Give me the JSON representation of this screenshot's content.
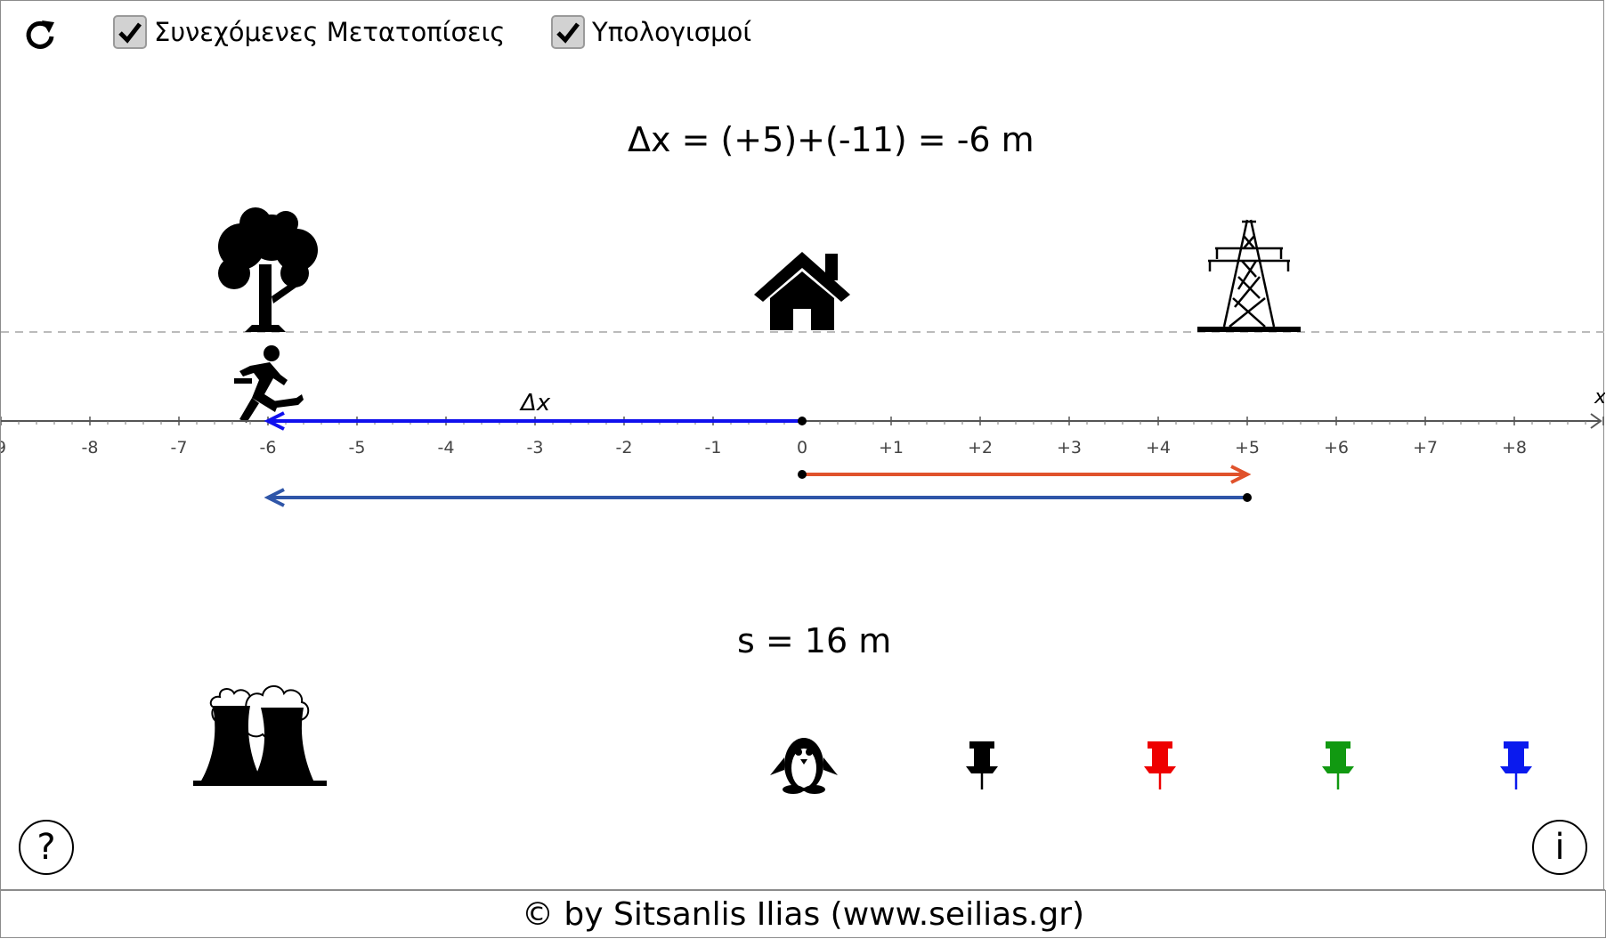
{
  "toolbar": {
    "reset_icon": "refresh-icon",
    "continuous_label": "Συνεχόμενες Μετατοπίσεις",
    "continuous_checked": true,
    "calculations_label": "Υπολογισμοί",
    "calculations_checked": true
  },
  "displacement_text": "Δx = (+5)+(-11) = -6 m",
  "distance_text": "s = 16 m",
  "axis": {
    "variable_label": "x",
    "delta_label": "Δx",
    "range": [
      -9,
      9
    ],
    "ticks": [
      "9",
      "-8",
      "-7",
      "-6",
      "-5",
      "-4",
      "-3",
      "-2",
      "-1",
      "0",
      "+1",
      "+2",
      "+3",
      "+4",
      "+5",
      "+6",
      "+7",
      "+8"
    ]
  },
  "landmarks": [
    {
      "name": "tree-icon",
      "position": -6
    },
    {
      "name": "house-icon",
      "position": 0
    },
    {
      "name": "pylon-icon",
      "position": 5
    }
  ],
  "runner": {
    "name": "runner-icon",
    "position": -6
  },
  "moves": [
    {
      "from": 0,
      "to": 5,
      "color": "#e0522b"
    },
    {
      "from": 5,
      "to": -6,
      "color": "#2f56a8"
    }
  ],
  "net_displacement": {
    "from": 0,
    "to": -6,
    "color": "#1010ee"
  },
  "palette": [
    {
      "name": "factory-icon"
    },
    {
      "name": "penguin-icon"
    },
    {
      "name": "black-pin-icon",
      "color": "#000000"
    },
    {
      "name": "red-pin-icon",
      "color": "#ee0000"
    },
    {
      "name": "green-pin-icon",
      "color": "#119911"
    },
    {
      "name": "blue-pin-icon",
      "color": "#0a1aee"
    }
  ],
  "help_label": "?",
  "info_label": "i",
  "footer_text": "© by Sitsanlis Ilias (www.seilias.gr)"
}
